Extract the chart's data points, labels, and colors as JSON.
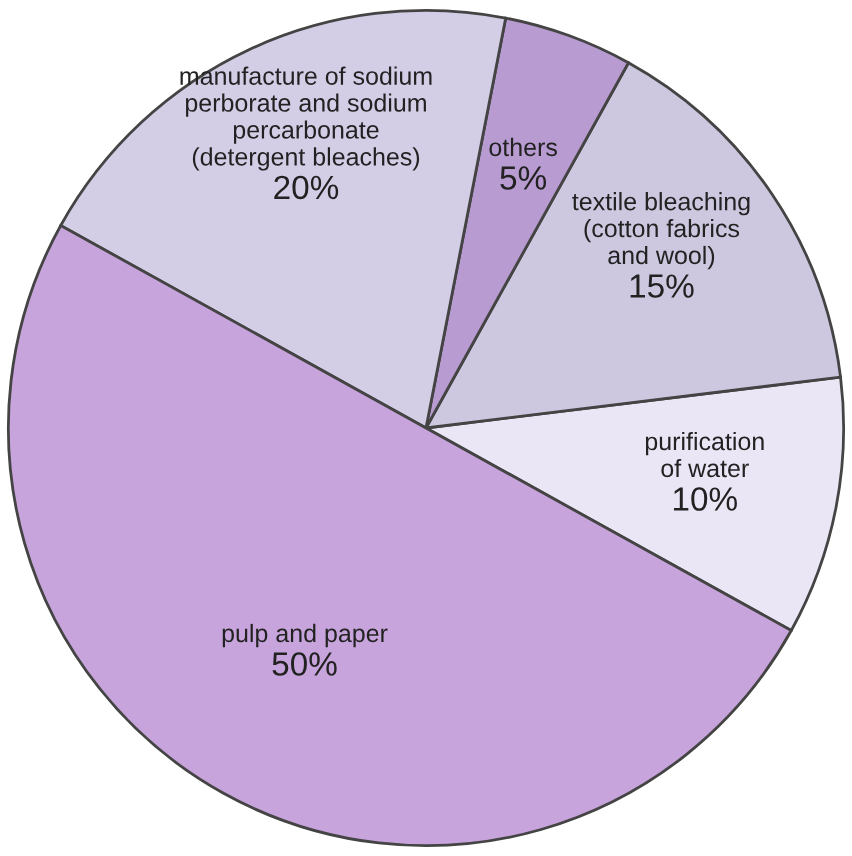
{
  "chart_data": {
    "type": "pie",
    "categories": [
      "purification\nof water",
      "textile bleaching\n(cotton fabrics\nand wool)",
      "others",
      "manufacture of sodium\nperborate and sodium\npercarbonate\n(detergent bleaches)",
      "pulp and paper"
    ],
    "values": [
      10,
      15,
      5,
      20,
      50
    ],
    "value_labels": [
      "10%",
      "15%",
      "5%",
      "20%",
      "50%"
    ],
    "colors": [
      "#ebe6f5",
      "#cdc8e0",
      "#b89bd0",
      "#d4cde6",
      "#c8a4dc"
    ]
  }
}
